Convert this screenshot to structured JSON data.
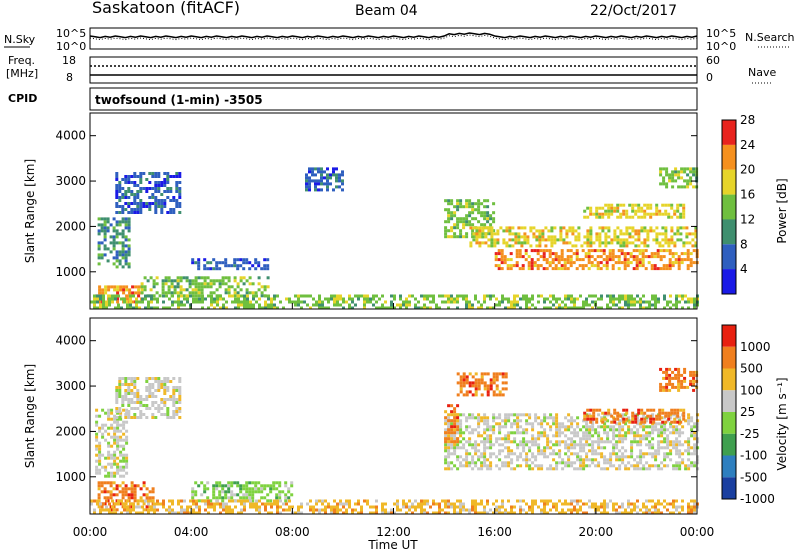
{
  "header": {
    "station": "Saskatoon (fitACF)",
    "beam": "Beam 04",
    "date": "22/Oct/2017"
  },
  "noise_panel": {
    "left_label": "N.Sky",
    "right_label": "N.Search",
    "ticks_left": [
      "10^5",
      "10^0"
    ],
    "ticks_right": [
      "10^5",
      "10^0"
    ]
  },
  "freq_panel": {
    "left_label_1": "Freq.",
    "left_label_2": "[MHz]",
    "left_ticks": [
      "18",
      "8"
    ],
    "right_label": "Nave",
    "right_ticks": [
      "60",
      "0"
    ],
    "cpid_label": "CPID",
    "program": "twofsound (1-min) -3505"
  },
  "chart_data": [
    {
      "type": "heatmap",
      "title": "Power",
      "ylabel": "Slant Range [km]",
      "yticks": [
        "1000",
        "2000",
        "3000",
        "4000"
      ],
      "ylim": [
        180,
        4500
      ],
      "colorbar_label": "Power [dB]",
      "colorbar_ticks": [
        "4",
        "8",
        "12",
        "16",
        "20",
        "24",
        "28"
      ],
      "colorscale": [
        "#1a1ae6",
        "#2f5fbf",
        "#3f8f6f",
        "#6fbf3f",
        "#e6d42a",
        "#f5901e",
        "#e8231e"
      ],
      "regions": [
        {
          "t": [
            0.3,
            1.5
          ],
          "r": [
            1100,
            2200
          ],
          "level": 2
        },
        {
          "t": [
            1.0,
            3.5
          ],
          "r": [
            2300,
            3200
          ],
          "level": 1
        },
        {
          "t": [
            0.2,
            2.0
          ],
          "r": [
            350,
            700
          ],
          "level": 5
        },
        {
          "t": [
            2.0,
            7.0
          ],
          "r": [
            500,
            900
          ],
          "level": 3
        },
        {
          "t": [
            4.0,
            7.0
          ],
          "r": [
            1100,
            1300
          ],
          "level": 1
        },
        {
          "t": [
            0.0,
            24.0
          ],
          "r": [
            180,
            500
          ],
          "level": 3
        },
        {
          "t": [
            14.0,
            16.0
          ],
          "r": [
            1800,
            2600
          ],
          "level": 3
        },
        {
          "t": [
            16.0,
            24.0
          ],
          "r": [
            1100,
            1500
          ],
          "level": 5
        },
        {
          "t": [
            15.0,
            24.0
          ],
          "r": [
            1600,
            2000
          ],
          "level": 4
        },
        {
          "t": [
            19.5,
            23.5
          ],
          "r": [
            2200,
            2500
          ],
          "level": 4
        },
        {
          "t": [
            22.5,
            24.0
          ],
          "r": [
            2900,
            3300
          ],
          "level": 3
        },
        {
          "t": [
            8.5,
            10.0
          ],
          "r": [
            2800,
            3300
          ],
          "level": 1
        }
      ]
    },
    {
      "type": "heatmap",
      "title": "Velocity",
      "xlabel": "Time UT",
      "ylabel": "Slant Range [km]",
      "xticks": [
        "00:00",
        "04:00",
        "08:00",
        "12:00",
        "16:00",
        "20:00",
        "00:00"
      ],
      "yticks": [
        "1000",
        "2000",
        "3000",
        "4000"
      ],
      "ylim": [
        180,
        4500
      ],
      "colorbar_label": "Velocity [m s⁻¹]",
      "colorbar_ticks": [
        "1000",
        "500",
        "100",
        "25",
        "-25",
        "-100",
        "-500",
        "-1000"
      ],
      "colorscale": [
        "#1a3fa0",
        "#2e7fbf",
        "#3f9f4f",
        "#7fd23f",
        "#c8c8c8",
        "#f0b828",
        "#f07f1e",
        "#e82010"
      ],
      "regions": [
        {
          "t": [
            0.2,
            1.5
          ],
          "r": [
            1000,
            2500
          ],
          "level": 4
        },
        {
          "t": [
            0.3,
            2.5
          ],
          "r": [
            300,
            900
          ],
          "level": 6
        },
        {
          "t": [
            1.0,
            3.5
          ],
          "r": [
            2300,
            3200
          ],
          "level": 4
        },
        {
          "t": [
            4.0,
            8.0
          ],
          "r": [
            500,
            900
          ],
          "level": 3
        },
        {
          "t": [
            0.0,
            24.0
          ],
          "r": [
            180,
            500
          ],
          "level": 5
        },
        {
          "t": [
            14.0,
            24.0
          ],
          "r": [
            1200,
            2400
          ],
          "level": 4
        },
        {
          "t": [
            14.5,
            16.5
          ],
          "r": [
            2800,
            3300
          ],
          "level": 6
        },
        {
          "t": [
            19.5,
            23.5
          ],
          "r": [
            2200,
            2500
          ],
          "level": 6
        },
        {
          "t": [
            22.5,
            24.0
          ],
          "r": [
            2900,
            3400
          ],
          "level": 6
        },
        {
          "t": [
            14.0,
            14.5
          ],
          "r": [
            1800,
            2600
          ],
          "level": 6
        }
      ]
    }
  ],
  "colors": {
    "axis": "#000000",
    "background": "#ffffff"
  }
}
